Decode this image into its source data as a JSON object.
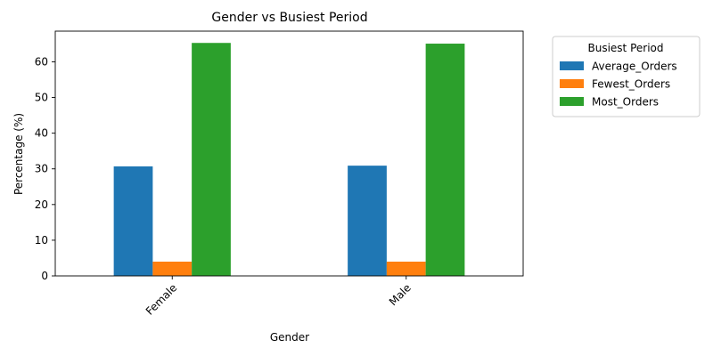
{
  "chart_data": {
    "type": "bar",
    "title": "Gender vs Busiest Period",
    "xlabel": "Gender",
    "ylabel": "Percentage (%)",
    "categories": [
      "Female",
      "Male"
    ],
    "series": [
      {
        "name": "Average_Orders",
        "values": [
          30.7,
          30.9
        ],
        "color": "#1f77b4"
      },
      {
        "name": "Fewest_Orders",
        "values": [
          4.0,
          4.0
        ],
        "color": "#ff7f0e"
      },
      {
        "name": "Most_Orders",
        "values": [
          65.3,
          65.1
        ],
        "color": "#2ca02c"
      }
    ],
    "ylim": [
      0,
      68.6
    ],
    "yticks": [
      0,
      10,
      20,
      30,
      40,
      50,
      60
    ],
    "legend": {
      "title": "Busiest Period",
      "placement": "outside-upper-right"
    },
    "grid": false
  }
}
